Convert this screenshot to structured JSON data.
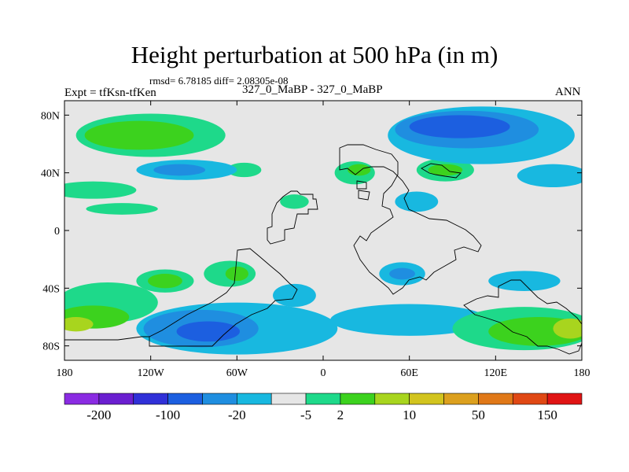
{
  "header": {
    "title": "Height perturbation at 500 hPa (in m)",
    "stats": "rmsd= 6.78185 diff= 2.08305e-08",
    "experiment": "Expt = tfKsn-tfKen",
    "case": "327_0_MaBP - 327_0_MaBP",
    "season": "ANN"
  },
  "chart_data": {
    "type": "heatmap",
    "title": "Height perturbation at 500 hPa (in m)",
    "xlabel": "",
    "ylabel": "",
    "xlim": [
      -180,
      180
    ],
    "ylim": [
      -90,
      90
    ],
    "x_ticks": [
      {
        "value": -180,
        "label": "180"
      },
      {
        "value": -120,
        "label": "120W"
      },
      {
        "value": -60,
        "label": "60W"
      },
      {
        "value": 0,
        "label": "0"
      },
      {
        "value": 60,
        "label": "60E"
      },
      {
        "value": 120,
        "label": "120E"
      },
      {
        "value": 180,
        "label": "180"
      }
    ],
    "y_ticks": [
      {
        "value": 80,
        "label": "80N"
      },
      {
        "value": 40,
        "label": "40N"
      },
      {
        "value": 0,
        "label": "0"
      },
      {
        "value": -40,
        "label": "40S"
      },
      {
        "value": -80,
        "label": "80S"
      }
    ],
    "colorbar": {
      "colors": [
        "#8a2be2",
        "#6a1fd0",
        "#3030d8",
        "#1c5fe0",
        "#1f8ee0",
        "#18b8e0",
        "#e6e6e6",
        "#1ed98a",
        "#3cd21e",
        "#a8d51e",
        "#d2c41e",
        "#dca01e",
        "#e07818",
        "#e04814",
        "#e01414"
      ],
      "tick_labels": [
        "-200",
        "-100",
        "-20",
        "-5",
        "2",
        "10",
        "50",
        "150"
      ]
    },
    "regions": [
      {
        "level": 1,
        "lon": -120,
        "lat": 66,
        "rlon": 52,
        "rlat": 15
      },
      {
        "level": 2,
        "lon": -128,
        "lat": 66,
        "rlon": 38,
        "rlat": 10
      },
      {
        "level": 1,
        "lon": -160,
        "lat": 28,
        "rlon": 30,
        "rlat": 6
      },
      {
        "level": 1,
        "lon": -55,
        "lat": 42,
        "rlon": 12,
        "rlat": 5
      },
      {
        "level": 1,
        "lon": -140,
        "lat": 15,
        "rlon": 25,
        "rlat": 4
      },
      {
        "level": 1,
        "lon": -20,
        "lat": 20,
        "rlon": 10,
        "rlat": 5
      },
      {
        "level": 1,
        "lon": 22,
        "lat": 40,
        "rlon": 14,
        "rlat": 8
      },
      {
        "level": 2,
        "lon": 25,
        "lat": 42,
        "rlon": 8,
        "rlat": 4
      },
      {
        "level": 1,
        "lon": 85,
        "lat": 42,
        "rlon": 20,
        "rlat": 8
      },
      {
        "level": 2,
        "lon": 85,
        "lat": 42,
        "rlon": 12,
        "rlat": 4
      },
      {
        "level": -1,
        "lon": 110,
        "lat": 66,
        "rlon": 65,
        "rlat": 20
      },
      {
        "level": -2,
        "lon": 100,
        "lat": 70,
        "rlon": 50,
        "rlat": 13
      },
      {
        "level": -3,
        "lon": 95,
        "lat": 72,
        "rlon": 35,
        "rlat": 8
      },
      {
        "level": -1,
        "lon": -95,
        "lat": 42,
        "rlon": 35,
        "rlat": 7
      },
      {
        "level": -2,
        "lon": -100,
        "lat": 42,
        "rlon": 18,
        "rlat": 4
      },
      {
        "level": -1,
        "lon": 160,
        "lat": 38,
        "rlon": 25,
        "rlat": 8
      },
      {
        "level": -1,
        "lon": 65,
        "lat": 20,
        "rlon": 15,
        "rlat": 7
      },
      {
        "level": 1,
        "lon": -150,
        "lat": -50,
        "rlon": 35,
        "rlat": 14
      },
      {
        "level": 2,
        "lon": -160,
        "lat": -60,
        "rlon": 25,
        "rlat": 8
      },
      {
        "level": 3,
        "lon": -172,
        "lat": -65,
        "rlon": 12,
        "rlat": 5
      },
      {
        "level": 1,
        "lon": -110,
        "lat": -35,
        "rlon": 20,
        "rlat": 8
      },
      {
        "level": 2,
        "lon": -110,
        "lat": -35,
        "rlon": 12,
        "rlat": 5
      },
      {
        "level": -1,
        "lon": -60,
        "lat": -68,
        "rlon": 70,
        "rlat": 18
      },
      {
        "level": -2,
        "lon": -85,
        "lat": -68,
        "rlon": 40,
        "rlat": 13
      },
      {
        "level": -3,
        "lon": -80,
        "lat": -70,
        "rlon": 22,
        "rlat": 7
      },
      {
        "level": -1,
        "lon": 60,
        "lat": -62,
        "rlon": 55,
        "rlat": 11
      },
      {
        "level": -1,
        "lon": 55,
        "lat": -30,
        "rlon": 16,
        "rlat": 8
      },
      {
        "level": -2,
        "lon": 55,
        "lat": -30,
        "rlon": 9,
        "rlat": 4
      },
      {
        "level": 1,
        "lon": 140,
        "lat": -68,
        "rlon": 50,
        "rlat": 15
      },
      {
        "level": 2,
        "lon": 150,
        "lat": -70,
        "rlon": 35,
        "rlat": 10
      },
      {
        "level": 3,
        "lon": 172,
        "lat": -68,
        "rlon": 12,
        "rlat": 7
      },
      {
        "level": -1,
        "lon": -20,
        "lat": -45,
        "rlon": 15,
        "rlat": 8
      },
      {
        "level": -1,
        "lon": 140,
        "lat": -35,
        "rlon": 25,
        "rlat": 7
      },
      {
        "level": 1,
        "lon": -65,
        "lat": -30,
        "rlon": 18,
        "rlat": 9
      },
      {
        "level": 2,
        "lon": -60,
        "lat": -30,
        "rlon": 8,
        "rlat": 5
      }
    ]
  }
}
